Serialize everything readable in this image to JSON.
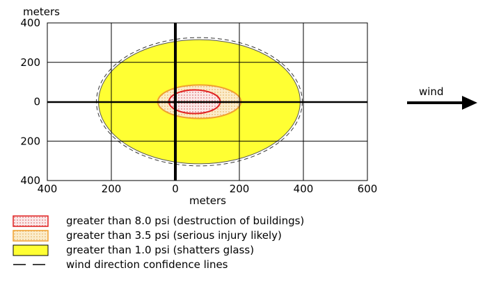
{
  "chart_data": {
    "type": "diagram",
    "y_axis_label": "meters",
    "x_axis_label": "meters",
    "y_ticks": [
      "400",
      "200",
      "0",
      "200",
      "400"
    ],
    "x_ticks": [
      "400",
      "200",
      "0",
      "200",
      "400",
      "600"
    ],
    "xlim": [
      -400,
      600
    ],
    "ylim": [
      -400,
      400
    ],
    "wind_label": "wind",
    "zones": [
      {
        "name": "greater than 1.0 psi",
        "center": [
          75,
          0
        ],
        "rx": 315,
        "ry": 315,
        "color": "#ffff33"
      },
      {
        "name": "greater than 3.5 psi",
        "center": [
          75,
          0
        ],
        "rx": 130,
        "ry": 85,
        "color": "#f6e3b0"
      },
      {
        "name": "greater than 8.0 psi",
        "center": [
          60,
          0
        ],
        "rx": 80,
        "ry": 60,
        "color": "#f7dede"
      }
    ],
    "legend": [
      {
        "swatch": "dotted-red",
        "label": "greater than 8.0 psi (destruction of buildings)"
      },
      {
        "swatch": "dotted-orange",
        "label": "greater than 3.5 psi (serious injury likely)"
      },
      {
        "swatch": "solid-yellow",
        "label": "greater than 1.0 psi (shatters glass)"
      },
      {
        "swatch": "dashed-line",
        "label": "wind direction confidence lines"
      }
    ]
  },
  "colors": {
    "yellow": "#ffff33",
    "orange_zone": "#f6e3b0",
    "orange_line": "#f0a030",
    "red_line": "#e02020",
    "red_zone": "#f7dede"
  },
  "icons": [
    "wind-arrow-icon"
  ]
}
